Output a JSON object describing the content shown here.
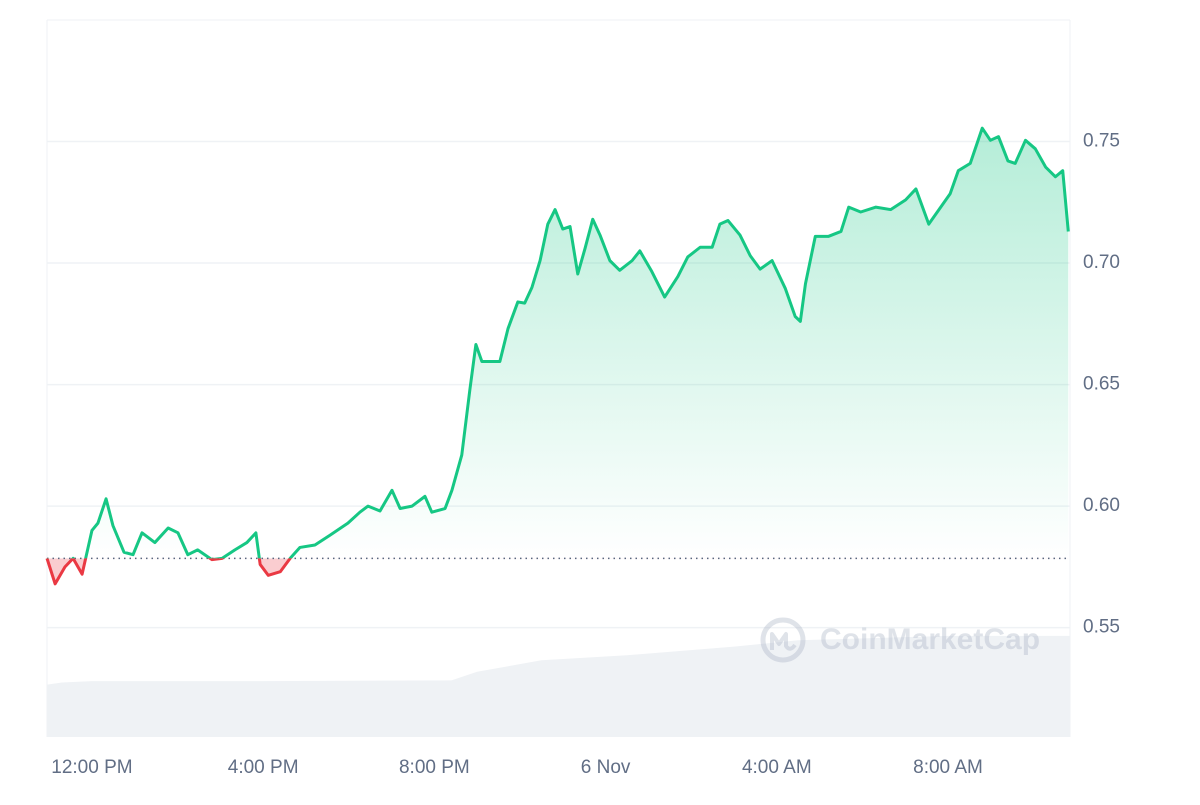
{
  "chart_data": {
    "type": "line",
    "watermark": "CoinMarketCap",
    "xlim": [
      10.95,
      34.85
    ],
    "ylim": [
      0.505,
      0.8
    ],
    "xticks": [
      {
        "value": 12,
        "label": "12:00 PM"
      },
      {
        "value": 16,
        "label": "4:00 PM"
      },
      {
        "value": 20,
        "label": "8:00 PM"
      },
      {
        "value": 24,
        "label": "6 Nov"
      },
      {
        "value": 28,
        "label": "4:00 AM"
      },
      {
        "value": 32,
        "label": "8:00 AM"
      }
    ],
    "yticks": [
      0.55,
      {
        "value": 0.6,
        "label": "0.60"
      },
      0.65,
      {
        "value": 0.7,
        "label": "0.70"
      },
      0.75
    ],
    "grid": true,
    "baseline": 0.5785,
    "series": [
      {
        "color": "#16c784",
        "down_color": "#ea3943",
        "x": [
          10.95,
          11.14,
          11.37,
          11.56,
          11.77,
          12.0,
          12.14,
          12.33,
          12.49,
          12.75,
          12.96,
          13.17,
          13.47,
          13.78,
          14.01,
          14.24,
          14.47,
          14.8,
          15.04,
          15.34,
          15.62,
          15.83,
          15.93,
          16.12,
          16.4,
          16.63,
          16.86,
          17.21,
          17.56,
          17.98,
          18.26,
          18.45,
          18.73,
          19.01,
          19.2,
          19.48,
          19.78,
          19.94,
          20.25,
          20.41,
          20.64,
          20.83,
          20.97,
          21.11,
          21.3,
          21.53,
          21.72,
          21.95,
          22.11,
          22.28,
          22.47,
          22.65,
          22.82,
          23.0,
          23.17,
          23.35,
          23.52,
          23.7,
          23.87,
          24.1,
          24.33,
          24.62,
          24.8,
          25.08,
          25.38,
          25.69,
          25.92,
          26.21,
          26.49,
          26.67,
          26.86,
          27.14,
          27.38,
          27.61,
          27.89,
          28.2,
          28.43,
          28.55,
          28.67,
          28.9,
          29.21,
          29.5,
          29.68,
          29.96,
          30.31,
          30.66,
          31.01,
          31.25,
          31.55,
          31.83,
          32.05,
          32.24,
          32.52,
          32.8,
          32.99,
          33.18,
          33.4,
          33.57,
          33.81,
          34.04,
          34.28,
          34.51,
          34.68,
          34.81
        ],
        "values": [
          0.5785,
          0.568,
          0.575,
          0.5785,
          0.572,
          0.59,
          0.593,
          0.603,
          0.592,
          0.581,
          0.58,
          0.589,
          0.585,
          0.591,
          0.589,
          0.58,
          0.582,
          0.578,
          0.5785,
          0.582,
          0.585,
          0.589,
          0.576,
          0.5715,
          0.573,
          0.5785,
          0.583,
          0.584,
          0.588,
          0.593,
          0.5975,
          0.6,
          0.598,
          0.6065,
          0.599,
          0.6,
          0.604,
          0.5975,
          0.599,
          0.6065,
          0.621,
          0.648,
          0.6665,
          0.6595,
          0.6595,
          0.6595,
          0.673,
          0.684,
          0.6835,
          0.69,
          0.701,
          0.716,
          0.722,
          0.714,
          0.715,
          0.6955,
          0.706,
          0.718,
          0.7115,
          0.701,
          0.697,
          0.701,
          0.705,
          0.6965,
          0.686,
          0.6945,
          0.7025,
          0.7065,
          0.7065,
          0.716,
          0.7175,
          0.7115,
          0.703,
          0.6975,
          0.701,
          0.6895,
          0.678,
          0.676,
          0.6915,
          0.711,
          0.711,
          0.713,
          0.723,
          0.721,
          0.723,
          0.722,
          0.726,
          0.7305,
          0.716,
          0.723,
          0.7285,
          0.738,
          0.741,
          0.7555,
          0.7505,
          0.752,
          0.742,
          0.741,
          0.7505,
          0.747,
          0.7395,
          0.7355,
          0.738,
          0.713
        ]
      }
    ],
    "volume": {
      "color": "#eff2f5",
      "lim": [
        0,
        100
      ],
      "x": [
        10.95,
        11.3,
        12,
        16,
        20.4,
        21,
        22.5,
        24.5,
        27,
        28.5,
        32,
        34.85
      ],
      "values": [
        7.3,
        7.6,
        7.8,
        7.8,
        7.9,
        9.1,
        10.7,
        11.4,
        12.6,
        13.5,
        14.1,
        14.1
      ]
    }
  }
}
